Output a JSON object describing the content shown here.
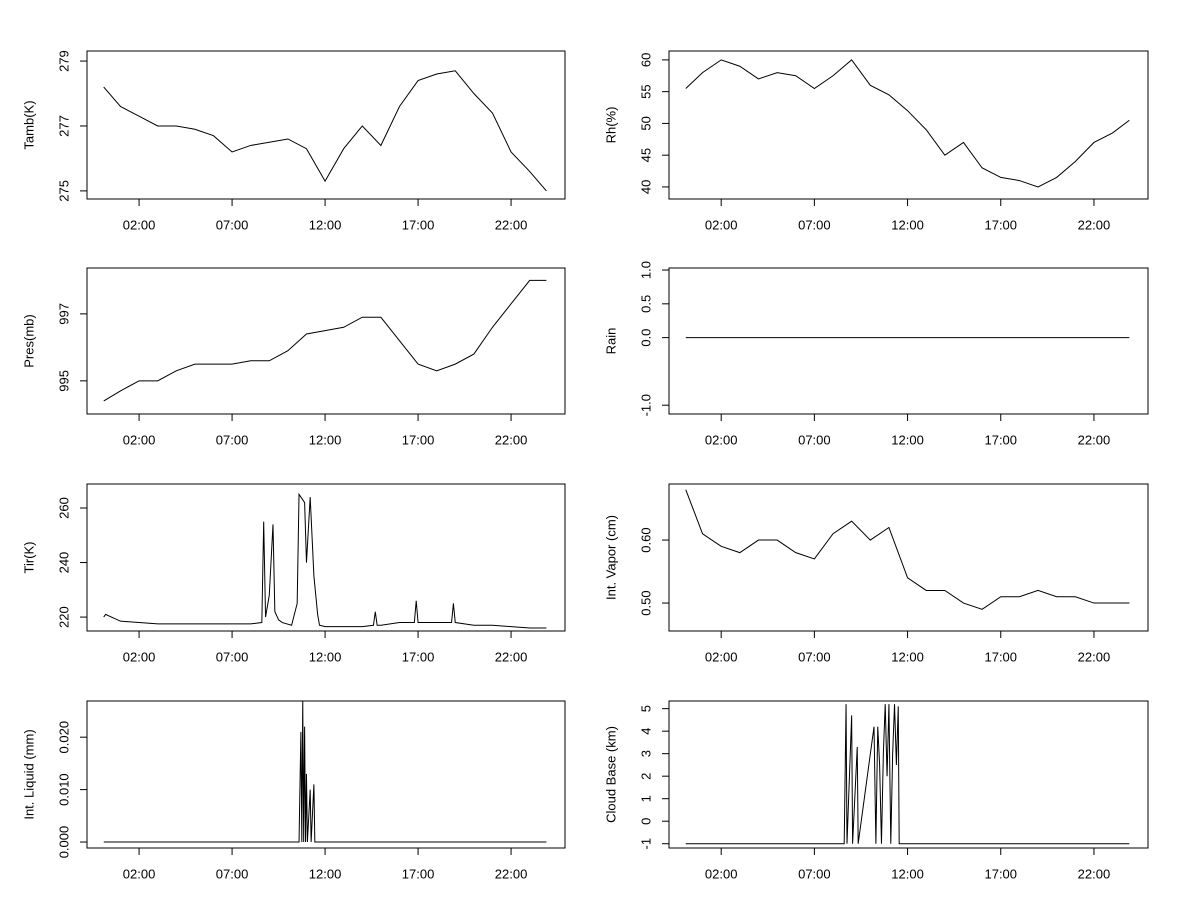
{
  "chart_data": [
    {
      "type": "line",
      "y_label": "Tamb(K)",
      "color": "#000000",
      "x": [
        0.1,
        1,
        2,
        3,
        4,
        5,
        6,
        7,
        8,
        9,
        10,
        11,
        12,
        13,
        14,
        15,
        16,
        17,
        18,
        19,
        20,
        21,
        22,
        23,
        23.9
      ],
      "values": [
        278.2,
        277.6,
        277.3,
        277.0,
        277.0,
        276.9,
        276.7,
        276.2,
        276.4,
        276.5,
        276.6,
        276.3,
        275.3,
        276.3,
        277.0,
        276.4,
        277.6,
        278.4,
        278.6,
        278.7,
        278.0,
        277.4,
        276.2,
        275.6,
        275.0
      ],
      "xlim": [
        -0.8,
        24.9
      ],
      "xticks": [
        {
          "value": 2,
          "label": "02:00"
        },
        {
          "value": 7,
          "label": "07:00"
        },
        {
          "value": 12,
          "label": "12:00"
        },
        {
          "value": 17,
          "label": "17:00"
        },
        {
          "value": 22,
          "label": "22:00"
        }
      ],
      "ylim": [
        274.75,
        279.31
      ],
      "yticks": [
        275,
        277,
        279
      ]
    },
    {
      "type": "line",
      "y_label": "Rh(%)",
      "color": "#000000",
      "x": [
        0.1,
        1,
        2,
        3,
        4,
        5,
        6,
        7,
        8,
        9,
        10,
        11,
        12,
        13,
        14,
        15,
        16,
        17,
        18,
        19,
        20,
        21,
        22,
        23,
        23.9
      ],
      "values": [
        55.5,
        58,
        60,
        59,
        57,
        58,
        57.5,
        55.5,
        57.5,
        60,
        56,
        54.5,
        52,
        49,
        45,
        47,
        43,
        41.5,
        41,
        40,
        41.5,
        44,
        47,
        48.5,
        50.5
      ],
      "xlim": [
        -0.8,
        24.9
      ],
      "xticks": [
        {
          "value": 2,
          "label": "02:00"
        },
        {
          "value": 7,
          "label": "07:00"
        },
        {
          "value": 12,
          "label": "12:00"
        },
        {
          "value": 17,
          "label": "17:00"
        },
        {
          "value": 22,
          "label": "22:00"
        }
      ],
      "ylim": [
        38.1,
        61.4
      ],
      "yticks": [
        40,
        45,
        50,
        55,
        60
      ]
    },
    {
      "type": "line",
      "y_label": "Pres(mb)",
      "color": "#000000",
      "x": [
        0.1,
        1,
        2,
        3,
        4,
        5,
        6,
        7,
        8,
        9,
        10,
        11,
        12,
        13,
        14,
        15,
        16,
        17,
        18,
        19,
        20,
        21,
        22,
        23,
        23.9
      ],
      "values": [
        994.4,
        994.7,
        995.0,
        995.0,
        995.3,
        995.5,
        995.5,
        995.5,
        995.6,
        995.6,
        995.9,
        996.4,
        996.5,
        996.6,
        996.9,
        996.9,
        996.2,
        995.5,
        995.3,
        995.5,
        995.8,
        996.6,
        997.3,
        998.0,
        998.0
      ],
      "xlim": [
        -0.8,
        24.9
      ],
      "xticks": [
        {
          "value": 2,
          "label": "02:00"
        },
        {
          "value": 7,
          "label": "07:00"
        },
        {
          "value": 12,
          "label": "12:00"
        },
        {
          "value": 17,
          "label": "17:00"
        },
        {
          "value": 22,
          "label": "22:00"
        }
      ],
      "ylim": [
        994.01,
        998.37
      ],
      "yticks": [
        995,
        997
      ]
    },
    {
      "type": "line",
      "y_label": "Rain",
      "color": "#000000",
      "x": [
        0.1,
        23.9
      ],
      "values": [
        0,
        0
      ],
      "xlim": [
        -0.8,
        24.9
      ],
      "xticks": [
        {
          "value": 2,
          "label": "02:00"
        },
        {
          "value": 7,
          "label": "07:00"
        },
        {
          "value": 12,
          "label": "12:00"
        },
        {
          "value": 17,
          "label": "17:00"
        },
        {
          "value": 22,
          "label": "22:00"
        }
      ],
      "ylim": [
        -1.13,
        1.03
      ],
      "yticks": [
        {
          "value": -1,
          "label": "-1.0"
        },
        {
          "value": 0,
          "label": "0.0"
        },
        {
          "value": 0.5,
          "label": "0.5"
        },
        {
          "value": 1,
          "label": "1.0"
        }
      ]
    },
    {
      "type": "line",
      "y_label": "Tir(K)",
      "color": "#000000",
      "x": [
        0.1,
        0.2,
        1,
        2,
        3,
        4,
        5,
        6,
        7,
        8,
        8.6,
        8.7,
        8.8,
        9.0,
        9.2,
        9.3,
        9.5,
        9.7,
        10.2,
        10.5,
        10.6,
        10.9,
        11.0,
        11.2,
        11.4,
        11.6,
        11.7,
        12,
        13,
        14,
        14.6,
        14.7,
        14.8,
        15,
        16,
        16.8,
        16.9,
        17.0,
        18,
        18.8,
        18.9,
        19.0,
        20,
        21,
        22,
        23,
        23.9
      ],
      "values": [
        220,
        221,
        218.5,
        218,
        217.5,
        217.5,
        217.5,
        217.5,
        217.5,
        217.5,
        218,
        255,
        220,
        228,
        254,
        222,
        219,
        218,
        217,
        225,
        265,
        262,
        240,
        264,
        235,
        221,
        217,
        216.5,
        216.5,
        216.5,
        217,
        222,
        217,
        217,
        218,
        218,
        226,
        218,
        218,
        218,
        225,
        218,
        217,
        217,
        216.5,
        216,
        216
      ],
      "xlim": [
        -0.8,
        24.9
      ],
      "xticks": [
        {
          "value": 2,
          "label": "02:00"
        },
        {
          "value": 7,
          "label": "07:00"
        },
        {
          "value": 12,
          "label": "12:00"
        },
        {
          "value": 17,
          "label": "17:00"
        },
        {
          "value": 22,
          "label": "22:00"
        }
      ],
      "ylim": [
        214.9,
        268.8
      ],
      "yticks": [
        220,
        240,
        260
      ]
    },
    {
      "type": "line",
      "y_label": "Int. Vapor (cm)",
      "color": "#000000",
      "x": [
        0.1,
        1,
        2,
        3,
        4,
        5,
        6,
        7,
        8,
        9,
        10,
        11,
        12,
        13,
        14,
        15,
        16,
        17,
        18,
        19,
        20,
        21,
        22,
        23,
        23.9
      ],
      "values": [
        0.68,
        0.61,
        0.59,
        0.58,
        0.6,
        0.6,
        0.58,
        0.57,
        0.61,
        0.63,
        0.6,
        0.62,
        0.54,
        0.52,
        0.52,
        0.5,
        0.49,
        0.51,
        0.51,
        0.52,
        0.51,
        0.51,
        0.5,
        0.5,
        0.5
      ],
      "xlim": [
        -0.8,
        24.9
      ],
      "xticks": [
        {
          "value": 2,
          "label": "02:00"
        },
        {
          "value": 7,
          "label": "07:00"
        },
        {
          "value": 12,
          "label": "12:00"
        },
        {
          "value": 17,
          "label": "17:00"
        },
        {
          "value": 22,
          "label": "22:00"
        }
      ],
      "ylim": [
        0.4556,
        0.689
      ],
      "yticks": [
        {
          "value": 0.5,
          "label": "0.50"
        },
        {
          "value": 0.6,
          "label": "0.60"
        }
      ]
    },
    {
      "type": "line",
      "y_label": "Int. Liquid (mm)",
      "color": "#000000",
      "x": [
        0.1,
        10.6,
        10.7,
        10.75,
        10.8,
        10.85,
        10.9,
        10.95,
        11.0,
        11.05,
        11.2,
        11.25,
        11.4,
        11.45,
        23.9
      ],
      "values": [
        0,
        0,
        0.021,
        0,
        0.027,
        0,
        0.022,
        0,
        0.013,
        0,
        0.01,
        0,
        0.011,
        0,
        0
      ],
      "xlim": [
        -0.8,
        24.9
      ],
      "xticks": [
        {
          "value": 2,
          "label": "02:00"
        },
        {
          "value": 7,
          "label": "07:00"
        },
        {
          "value": 12,
          "label": "12:00"
        },
        {
          "value": 17,
          "label": "17:00"
        },
        {
          "value": 22,
          "label": "22:00"
        }
      ],
      "ylim": [
        -0.00114,
        0.0269
      ],
      "yticks": [
        {
          "value": 0,
          "label": "0.000"
        },
        {
          "value": 0.01,
          "label": "0.010"
        },
        {
          "value": 0.02,
          "label": "0.020"
        }
      ]
    },
    {
      "type": "line",
      "y_label": "Cloud Base (km)",
      "color": "#000000",
      "x": [
        0.1,
        8.6,
        8.7,
        8.75,
        9.0,
        9.05,
        9.3,
        9.35,
        10.2,
        10.3,
        10.4,
        10.5,
        10.6,
        10.7,
        10.8,
        10.9,
        11.0,
        11.1,
        11.2,
        11.3,
        11.4,
        11.5,
        11.55,
        23.9
      ],
      "values": [
        -1,
        -1,
        5.2,
        -1,
        4.7,
        -1,
        3.3,
        -1,
        4.2,
        -1,
        4.2,
        2.5,
        -1,
        3,
        5.2,
        2,
        5.2,
        -1,
        3,
        5.2,
        2.5,
        5.1,
        -1,
        -1
      ],
      "xlim": [
        -0.8,
        24.9
      ],
      "xticks": [
        {
          "value": 2,
          "label": "02:00"
        },
        {
          "value": 7,
          "label": "07:00"
        },
        {
          "value": 12,
          "label": "12:00"
        },
        {
          "value": 17,
          "label": "17:00"
        },
        {
          "value": 22,
          "label": "22:00"
        }
      ],
      "ylim": [
        -1.19,
        5.34
      ],
      "yticks": [
        -1,
        0,
        1,
        2,
        3,
        4,
        5
      ]
    }
  ]
}
